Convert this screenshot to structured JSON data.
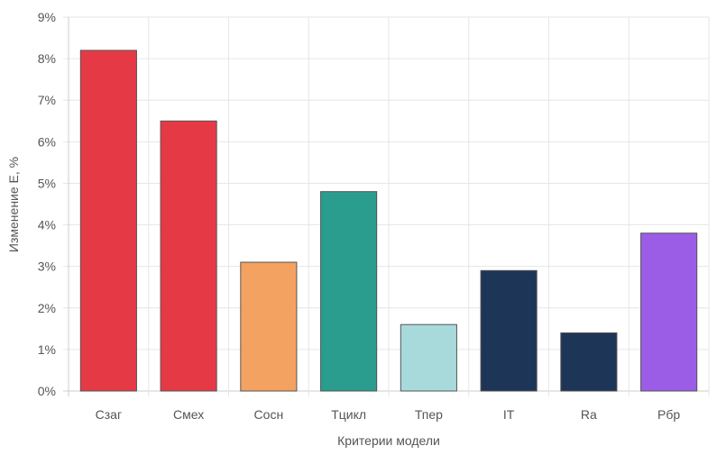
{
  "chart_data": {
    "type": "bar",
    "title": "",
    "xlabel": "Критерии модели",
    "ylabel": "Изменение E, %",
    "ylim": [
      0,
      9
    ],
    "ytick_step": 1,
    "y_tick_suffix": "%",
    "grid": true,
    "legend": "none",
    "categories": [
      "Сзаг",
      "Смех",
      "Сосн",
      "Тцикл",
      "Тпер",
      "IT",
      "Ra",
      "Рбр"
    ],
    "values": [
      8.2,
      6.5,
      3.1,
      4.8,
      1.6,
      2.9,
      1.4,
      3.8
    ],
    "colors": [
      "#e63946",
      "#e63946",
      "#f4a261",
      "#2a9d8f",
      "#a8dadc",
      "#1d3557",
      "#1d3557",
      "#9b5de5"
    ],
    "bar_stroke": "#555555",
    "grid_color": "#e6e6e6",
    "axis_color": "#cccccc"
  }
}
